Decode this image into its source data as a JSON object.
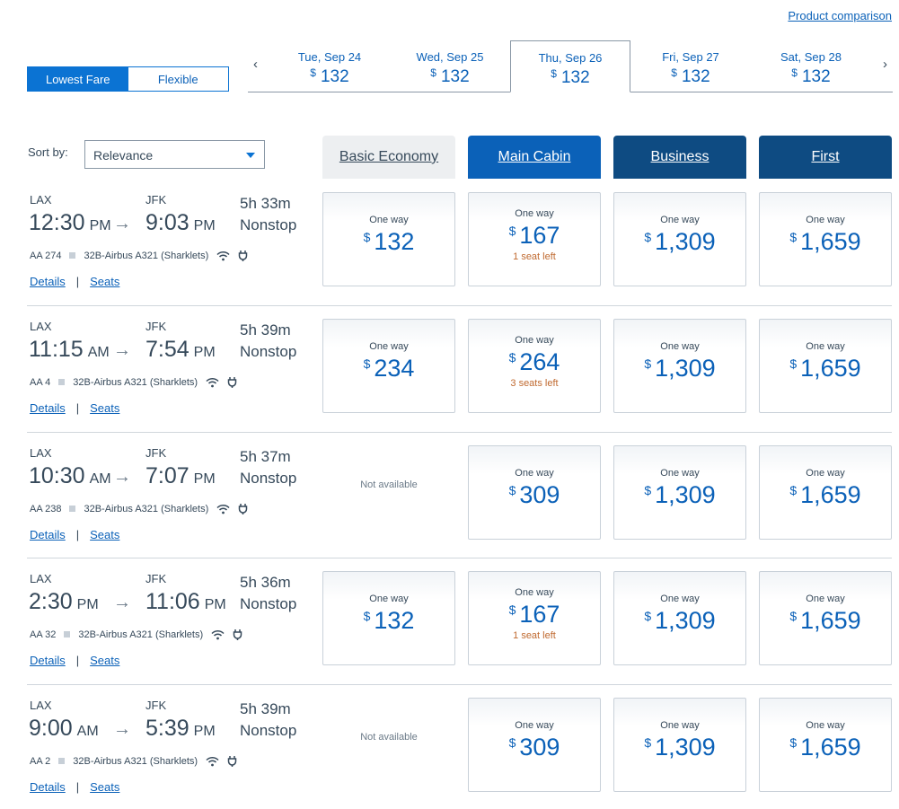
{
  "product_comparison": "Product comparison",
  "fare_toggle": {
    "lowest": "Lowest Fare",
    "flexible": "Flexible"
  },
  "date_nav": {
    "prev_icon": "‹",
    "next_icon": "›",
    "dates": [
      {
        "date": "Tue, Sep 24",
        "currency": "$",
        "price": "132"
      },
      {
        "date": "Wed, Sep 25",
        "currency": "$",
        "price": "132"
      },
      {
        "date": "Thu, Sep 26",
        "currency": "$",
        "price": "132"
      },
      {
        "date": "Fri, Sep 27",
        "currency": "$",
        "price": "132"
      },
      {
        "date": "Sat, Sep 28",
        "currency": "$",
        "price": "132"
      }
    ]
  },
  "sort": {
    "label": "Sort by:",
    "value": "Relevance"
  },
  "cabins": {
    "basic": "Basic Economy",
    "main": "Main Cabin",
    "business": "Business",
    "first": "First"
  },
  "fare_label": "One way",
  "not_available": "Not available",
  "links": {
    "details": "Details",
    "sep": "|",
    "seats": "Seats"
  },
  "flights": [
    {
      "origin": "LAX",
      "destination": "JFK",
      "dep_time": "12:30",
      "dep_ampm": "PM",
      "arr_time": "9:03",
      "arr_ampm": "PM",
      "duration": "5h 33m",
      "stops": "Nonstop",
      "flight_no": "AA 274",
      "aircraft": "32B-Airbus A321 (Sharklets)",
      "fares": {
        "basic": {
          "currency": "$",
          "price": "132",
          "seats": ""
        },
        "main": {
          "currency": "$",
          "price": "167",
          "seats": "1 seat left"
        },
        "business": {
          "currency": "$",
          "price": "1,309",
          "seats": ""
        },
        "first": {
          "currency": "$",
          "price": "1,659",
          "seats": ""
        }
      }
    },
    {
      "origin": "LAX",
      "destination": "JFK",
      "dep_time": "11:15",
      "dep_ampm": "AM",
      "arr_time": "7:54",
      "arr_ampm": "PM",
      "duration": "5h 39m",
      "stops": "Nonstop",
      "flight_no": "AA 4",
      "aircraft": "32B-Airbus A321 (Sharklets)",
      "fares": {
        "basic": {
          "currency": "$",
          "price": "234",
          "seats": ""
        },
        "main": {
          "currency": "$",
          "price": "264",
          "seats": "3 seats left"
        },
        "business": {
          "currency": "$",
          "price": "1,309",
          "seats": ""
        },
        "first": {
          "currency": "$",
          "price": "1,659",
          "seats": ""
        }
      }
    },
    {
      "origin": "LAX",
      "destination": "JFK",
      "dep_time": "10:30",
      "dep_ampm": "AM",
      "arr_time": "7:07",
      "arr_ampm": "PM",
      "duration": "5h 37m",
      "stops": "Nonstop",
      "flight_no": "AA 238",
      "aircraft": "32B-Airbus A321 (Sharklets)",
      "fares": {
        "basic": null,
        "main": {
          "currency": "$",
          "price": "309",
          "seats": ""
        },
        "business": {
          "currency": "$",
          "price": "1,309",
          "seats": ""
        },
        "first": {
          "currency": "$",
          "price": "1,659",
          "seats": ""
        }
      }
    },
    {
      "origin": "LAX",
      "destination": "JFK",
      "dep_time": "2:30",
      "dep_ampm": "PM",
      "arr_time": "11:06",
      "arr_ampm": "PM",
      "duration": "5h 36m",
      "stops": "Nonstop",
      "flight_no": "AA 32",
      "aircraft": "32B-Airbus A321 (Sharklets)",
      "fares": {
        "basic": {
          "currency": "$",
          "price": "132",
          "seats": ""
        },
        "main": {
          "currency": "$",
          "price": "167",
          "seats": "1 seat left"
        },
        "business": {
          "currency": "$",
          "price": "1,309",
          "seats": ""
        },
        "first": {
          "currency": "$",
          "price": "1,659",
          "seats": ""
        }
      }
    },
    {
      "origin": "LAX",
      "destination": "JFK",
      "dep_time": "9:00",
      "dep_ampm": "AM",
      "arr_time": "5:39",
      "arr_ampm": "PM",
      "duration": "5h 39m",
      "stops": "Nonstop",
      "flight_no": "AA 2",
      "aircraft": "32B-Airbus A321 (Sharklets)",
      "fares": {
        "basic": null,
        "main": {
          "currency": "$",
          "price": "309",
          "seats": ""
        },
        "business": {
          "currency": "$",
          "price": "1,309",
          "seats": ""
        },
        "first": {
          "currency": "$",
          "price": "1,659",
          "seats": ""
        }
      }
    }
  ],
  "colors": {
    "link_blue": "#0b61b8",
    "toggle_blue": "#0b73d3",
    "main_cabin": "#0b61b8",
    "premium_cabin": "#0e4b82",
    "seats_left": "#c06a30"
  }
}
